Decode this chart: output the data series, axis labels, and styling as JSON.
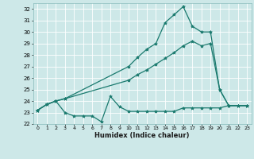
{
  "bg_color": "#cde8e8",
  "grid_color": "#ffffff",
  "line_color": "#1a7a6e",
  "line_width": 0.9,
  "marker": "*",
  "marker_size": 3,
  "xlabel": "Humidex (Indice chaleur)",
  "xlim": [
    -0.5,
    23.5
  ],
  "ylim": [
    22,
    32.5
  ],
  "xticks": [
    0,
    1,
    2,
    3,
    4,
    5,
    6,
    7,
    8,
    9,
    10,
    11,
    12,
    13,
    14,
    15,
    16,
    17,
    18,
    19,
    20,
    21,
    22,
    23
  ],
  "yticks": [
    22,
    23,
    24,
    25,
    26,
    27,
    28,
    29,
    30,
    31,
    32
  ],
  "series1_x": [
    0,
    1,
    2,
    3,
    4,
    5,
    6,
    7,
    8,
    9,
    10,
    11,
    12,
    13,
    14,
    15,
    16,
    17,
    18,
    19,
    20,
    21,
    22,
    23
  ],
  "series1_y": [
    23.2,
    23.7,
    24.0,
    23.0,
    22.7,
    22.7,
    22.7,
    22.2,
    24.4,
    23.5,
    23.1,
    23.1,
    23.1,
    23.1,
    23.1,
    23.1,
    23.4,
    23.4,
    23.4,
    23.4,
    23.4,
    23.6,
    23.6,
    23.6
  ],
  "series2_x": [
    0,
    1,
    2,
    3,
    10,
    11,
    12,
    13,
    14,
    15,
    16,
    17,
    18,
    19,
    20,
    21,
    22,
    23
  ],
  "series2_y": [
    23.2,
    23.7,
    24.0,
    24.2,
    25.8,
    26.3,
    26.7,
    27.2,
    27.7,
    28.2,
    28.8,
    29.2,
    28.8,
    29.0,
    25.0,
    23.6,
    23.6,
    23.6
  ],
  "series3_x": [
    0,
    1,
    2,
    3,
    10,
    11,
    12,
    13,
    14,
    15,
    16,
    17,
    18,
    19,
    20,
    21,
    22,
    23
  ],
  "series3_y": [
    23.2,
    23.7,
    24.0,
    24.2,
    27.0,
    27.8,
    28.5,
    29.0,
    30.8,
    31.5,
    32.2,
    30.5,
    30.0,
    30.0,
    25.0,
    23.6,
    23.6,
    23.6
  ]
}
